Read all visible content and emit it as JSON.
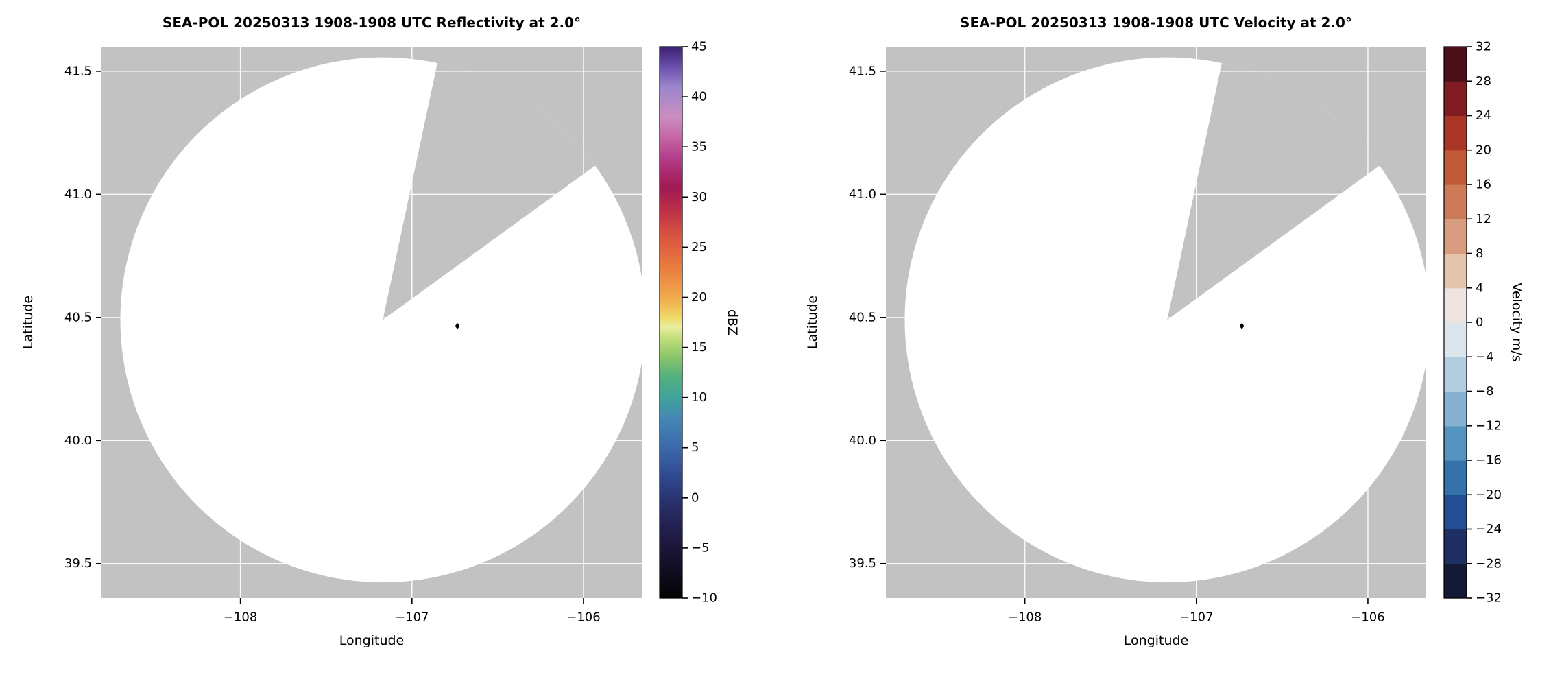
{
  "figure_bg": "#ffffff",
  "text_color": "#000000",
  "chart_data": [
    {
      "id": "reflectivity",
      "type": "radar_ppi",
      "title": "SEA-POL 20250313 1908-1908 UTC Reflectivity at 2.0°",
      "xlabel": "Longitude",
      "ylabel": "Latitude",
      "xlim": [
        -108.81,
        -105.66
      ],
      "ylim": [
        39.36,
        41.6
      ],
      "background_color": "#c2c2c2",
      "grid": true,
      "grid_color": "#ffffff",
      "xticks": {
        "values": [
          -108,
          -107,
          -106
        ],
        "labels": [
          "−108",
          "−107",
          "−106"
        ]
      },
      "yticks": {
        "values": [
          41.5,
          41.0,
          40.5,
          40.0,
          39.5
        ],
        "labels": [
          "41.5",
          "41.0",
          "40.5",
          "40.0",
          "39.5"
        ]
      },
      "scan": {
        "fill": "#ffffff",
        "center_lon": -107.17,
        "center_lat": 40.49,
        "radius_deg_lon": 1.53,
        "missing_sector_deg": [
          12,
          54
        ]
      },
      "marker": {
        "lon": -106.735,
        "lat": 40.465,
        "shape": "diamond",
        "color": "#000000"
      },
      "colorbar": {
        "label": "dBZ",
        "kind": "continuous",
        "vmin": -10,
        "vmax": 45,
        "tick_values": [
          45,
          40,
          35,
          30,
          25,
          20,
          15,
          10,
          5,
          0,
          -5,
          -10
        ],
        "tick_labels": [
          "45",
          "40",
          "35",
          "30",
          "25",
          "20",
          "15",
          "10",
          "5",
          "0",
          "−5",
          "−10"
        ],
        "gradient_stops": [
          {
            "value": -10,
            "color": "#040304"
          },
          {
            "value": -6,
            "color": "#17122f"
          },
          {
            "value": -3,
            "color": "#221f4e"
          },
          {
            "value": 0,
            "color": "#2a3472"
          },
          {
            "value": 2,
            "color": "#30478f"
          },
          {
            "value": 5,
            "color": "#3c68ac"
          },
          {
            "value": 8,
            "color": "#4487b4"
          },
          {
            "value": 10,
            "color": "#3fa39b"
          },
          {
            "value": 12,
            "color": "#52af7e"
          },
          {
            "value": 14,
            "color": "#88c468"
          },
          {
            "value": 16,
            "color": "#c4df7c"
          },
          {
            "value": 17,
            "color": "#e9efa0"
          },
          {
            "value": 18,
            "color": "#f0d968"
          },
          {
            "value": 20,
            "color": "#f0a94c"
          },
          {
            "value": 23,
            "color": "#e87c3e"
          },
          {
            "value": 26,
            "color": "#da5540"
          },
          {
            "value": 29,
            "color": "#b92c4a"
          },
          {
            "value": 31,
            "color": "#a01a53"
          },
          {
            "value": 34,
            "color": "#b43f8c"
          },
          {
            "value": 36,
            "color": "#c667a6"
          },
          {
            "value": 38,
            "color": "#cc8ec0"
          },
          {
            "value": 41,
            "color": "#9a86cc"
          },
          {
            "value": 43,
            "color": "#6a4fae"
          },
          {
            "value": 45,
            "color": "#3b2071"
          }
        ]
      }
    },
    {
      "id": "velocity",
      "type": "radar_ppi",
      "title": "SEA-POL 20250313 1908-1908 UTC Velocity at 2.0°",
      "xlabel": "Longitude",
      "ylabel": "Latitude",
      "xlim": [
        -108.81,
        -105.66
      ],
      "ylim": [
        39.36,
        41.6
      ],
      "background_color": "#c2c2c2",
      "grid": true,
      "grid_color": "#ffffff",
      "xticks": {
        "values": [
          -108,
          -107,
          -106
        ],
        "labels": [
          "−108",
          "−107",
          "−106"
        ]
      },
      "yticks": {
        "values": [
          41.5,
          41.0,
          40.5,
          40.0,
          39.5
        ],
        "labels": [
          "41.5",
          "41.0",
          "40.5",
          "40.0",
          "39.5"
        ]
      },
      "scan": {
        "fill": "#ffffff",
        "center_lon": -107.17,
        "center_lat": 40.49,
        "radius_deg_lon": 1.53,
        "missing_sector_deg": [
          12,
          54
        ]
      },
      "marker": {
        "lon": -106.735,
        "lat": 40.465,
        "shape": "diamond",
        "color": "#000000"
      },
      "colorbar": {
        "label": "Velocity m/s",
        "kind": "discrete",
        "vmin": -32,
        "vmax": 32,
        "tick_values": [
          32,
          28,
          24,
          20,
          16,
          12,
          8,
          4,
          0,
          -4,
          -8,
          -12,
          -16,
          -20,
          -24,
          -28,
          -32
        ],
        "tick_labels": [
          "32",
          "28",
          "24",
          "20",
          "16",
          "12",
          "8",
          "4",
          "0",
          "−4",
          "−8",
          "−12",
          "−16",
          "−20",
          "−24",
          "−28",
          "−32"
        ],
        "segment_colors_bottom_to_top": [
          "#131a33",
          "#1d2f63",
          "#224f93",
          "#3272a9",
          "#5694bf",
          "#86b2d1",
          "#b2cde0",
          "#dce5eb",
          "#eee4e0",
          "#e5c3ad",
          "#d89d7e",
          "#cb7b58",
          "#c05a39",
          "#aa3626",
          "#811d22",
          "#4a1119"
        ]
      }
    }
  ]
}
